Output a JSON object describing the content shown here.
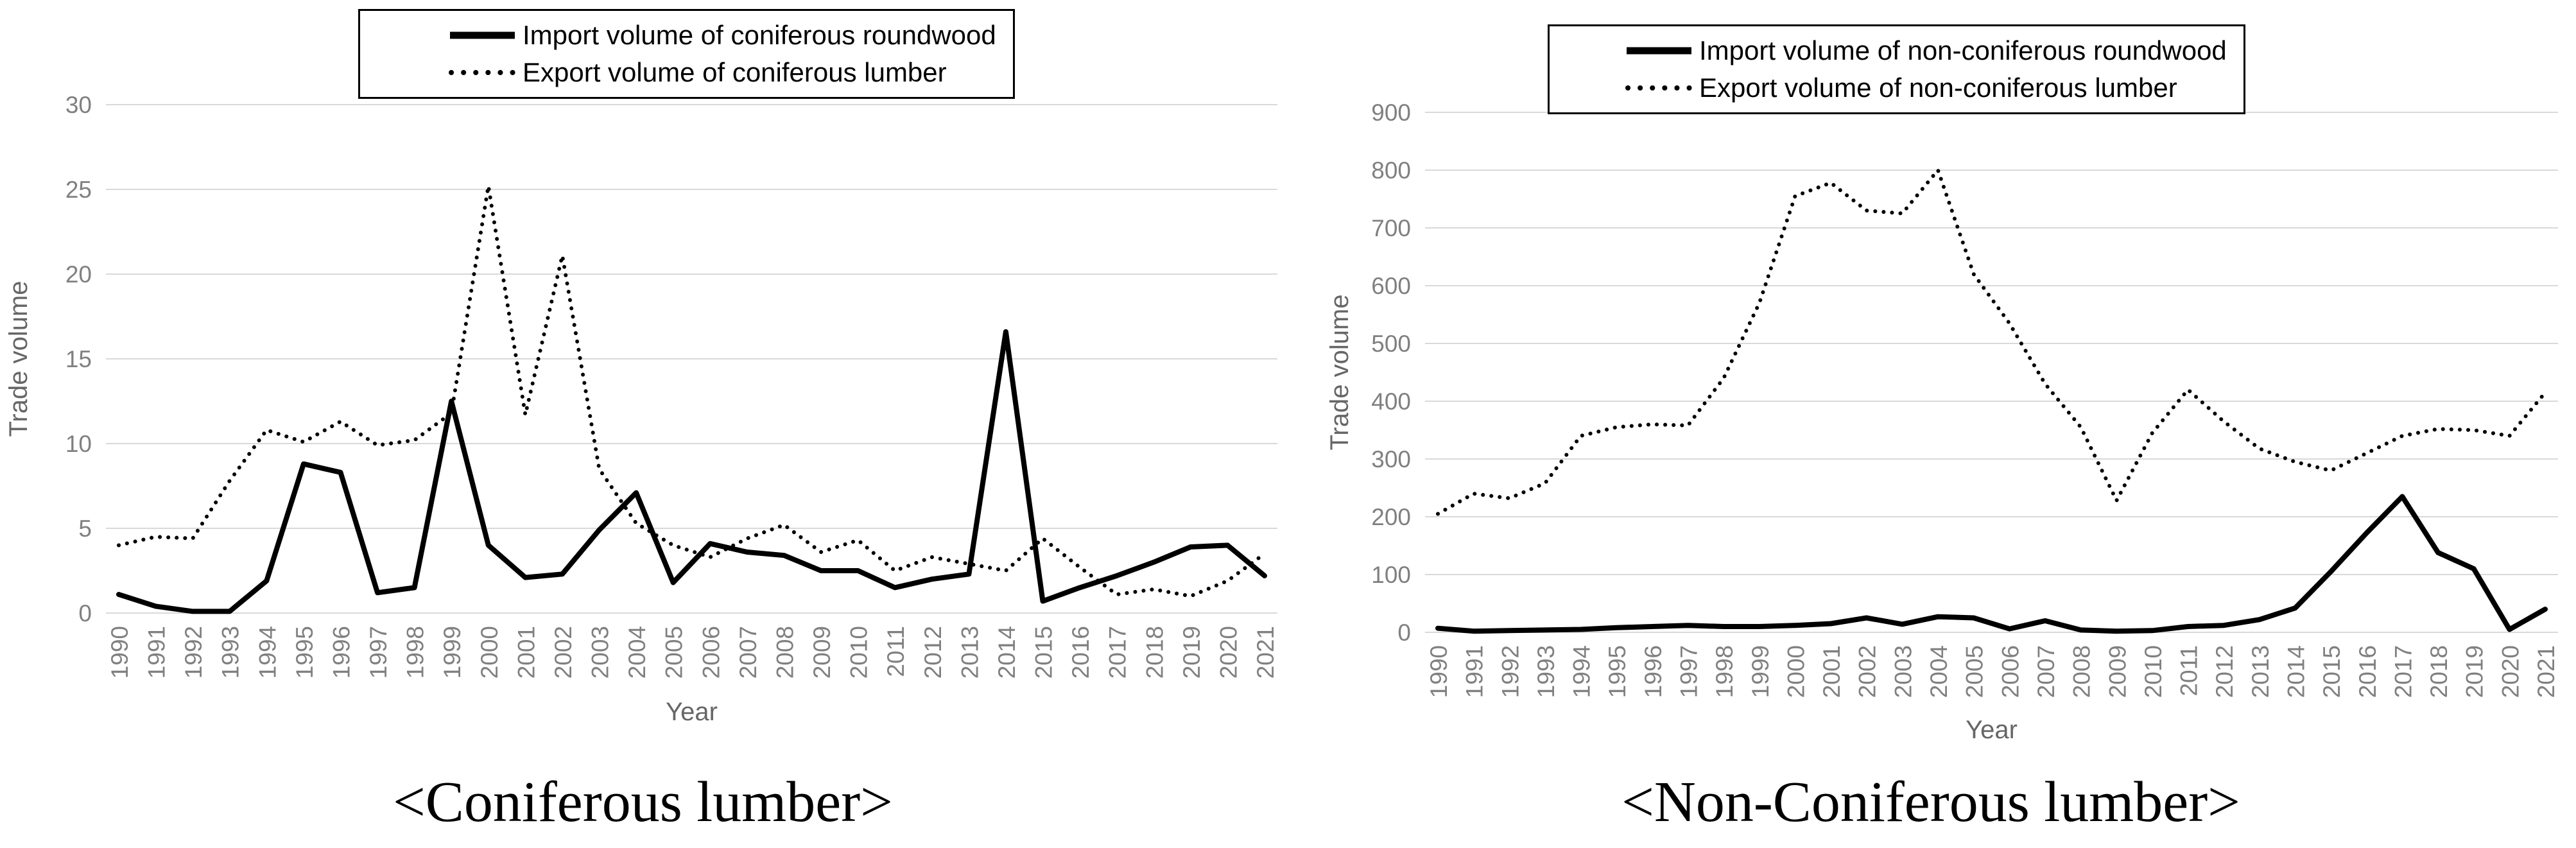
{
  "colors": {
    "line": "#000000",
    "grid": "#d9d9d9",
    "tick_label": "#808080",
    "axis_label": "#666666",
    "caption": "#000000",
    "legend_border": "#000000",
    "background": "#ffffff"
  },
  "chart_data": [
    {
      "type": "line",
      "caption": "<Coniferous lumber>",
      "xlabel": "Year",
      "ylabel": "Trade volume",
      "ylim": [
        0,
        30
      ],
      "yticks": [
        0,
        5,
        10,
        15,
        20,
        25,
        30
      ],
      "grid": true,
      "legend_position": "top-center",
      "categories": [
        "1990",
        "1991",
        "1992",
        "1993",
        "1994",
        "1995",
        "1996",
        "1997",
        "1998",
        "1999",
        "2000",
        "2001",
        "2002",
        "2003",
        "2004",
        "2005",
        "2006",
        "2007",
        "2008",
        "2009",
        "2010",
        "2011",
        "2012",
        "2013",
        "2014",
        "2015",
        "2016",
        "2017",
        "2018",
        "2019",
        "2020",
        "2021"
      ],
      "series": [
        {
          "name": "Import volume of coniferous roundwood",
          "line_style": "solid",
          "values": [
            1.1,
            0.4,
            0.1,
            0.1,
            1.9,
            8.8,
            8.3,
            1.2,
            1.5,
            12.5,
            4.0,
            2.1,
            2.3,
            4.9,
            7.1,
            1.8,
            4.1,
            3.6,
            3.4,
            2.5,
            2.5,
            1.5,
            2.0,
            2.3,
            16.6,
            0.7,
            1.5,
            2.2,
            3.0,
            3.9,
            4.0,
            2.2
          ]
        },
        {
          "name": "Export volume of coniferous lumber",
          "line_style": "dotted",
          "values": [
            4.0,
            4.5,
            4.4,
            7.8,
            10.8,
            10.1,
            11.3,
            9.9,
            10.2,
            11.8,
            25.2,
            11.7,
            21.1,
            8.5,
            5.3,
            4.0,
            3.3,
            4.4,
            5.2,
            3.6,
            4.3,
            2.5,
            3.3,
            2.9,
            2.5,
            4.4,
            2.7,
            1.1,
            1.4,
            1.0,
            1.9,
            3.5
          ]
        }
      ]
    },
    {
      "type": "line",
      "caption": "<Non-Coniferous lumber>",
      "xlabel": "Year",
      "ylabel": "Trade volume",
      "ylim": [
        0,
        900
      ],
      "yticks": [
        0,
        100,
        200,
        300,
        400,
        500,
        600,
        700,
        800,
        900
      ],
      "grid": true,
      "legend_position": "top-center",
      "categories": [
        "1990",
        "1991",
        "1992",
        "1993",
        "1994",
        "1995",
        "1996",
        "1997",
        "1998",
        "1999",
        "2000",
        "2001",
        "2002",
        "2003",
        "2004",
        "2005",
        "2006",
        "2007",
        "2008",
        "2009",
        "2010",
        "2011",
        "2012",
        "2013",
        "2014",
        "2015",
        "2016",
        "2017",
        "2018",
        "2019",
        "2020",
        "2021"
      ],
      "series": [
        {
          "name": "Import volume of non-coniferous roundwood",
          "line_style": "solid",
          "values": [
            7,
            2,
            3,
            4,
            5,
            8,
            10,
            12,
            10,
            10,
            12,
            15,
            25,
            14,
            27,
            25,
            6,
            20,
            4,
            2,
            3,
            10,
            12,
            22,
            42,
            105,
            172,
            235,
            138,
            110,
            5,
            40
          ]
        },
        {
          "name": "Export volume of non-coniferous lumber",
          "line_style": "dotted",
          "values": [
            205,
            240,
            232,
            258,
            340,
            355,
            360,
            358,
            440,
            570,
            755,
            778,
            730,
            725,
            800,
            620,
            535,
            430,
            355,
            228,
            345,
            420,
            365,
            318,
            295,
            280,
            310,
            340,
            352,
            350,
            340,
            415
          ]
        }
      ]
    }
  ]
}
